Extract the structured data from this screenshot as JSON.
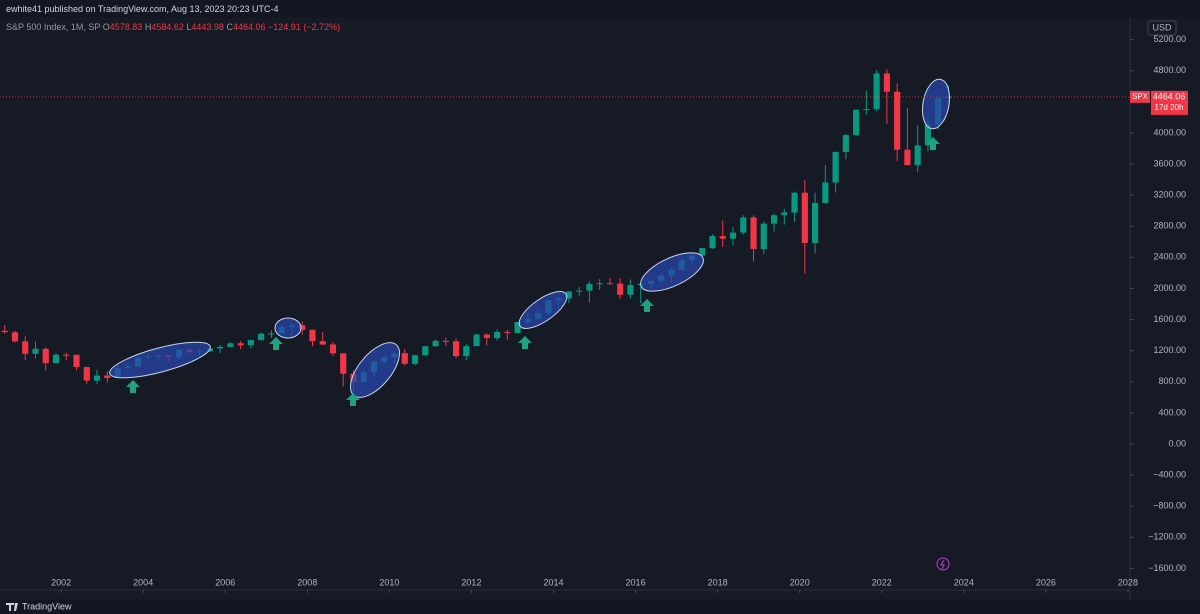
{
  "header": {
    "publisher": "ewhite41 published on TradingView.com, Aug 13, 2023 20:23 UTC-4",
    "footer_brand": "TradingView",
    "currency": "USD",
    "countdown": "17d 20h"
  },
  "chart_data": {
    "type": "candlestick",
    "title": "S&P 500 Index, 1M, SP",
    "symbol": "SPX",
    "readout": {
      "labels": [
        "O",
        "H",
        "L",
        "C"
      ],
      "values": [
        4578.83,
        4584.62,
        4443.98,
        4464.06
      ],
      "change": {
        "value": -124.91,
        "label": "−124.91"
      },
      "change_percent": {
        "value": -2.72,
        "label": "(−2.72%)"
      }
    },
    "up_color": "#089981",
    "down_color": "#f23645",
    "x": [
      2000.5,
      2000.75,
      2001,
      2001.25,
      2001.5,
      2001.75,
      2002,
      2002.25,
      2002.5,
      2002.75,
      2003,
      2003.25,
      2003.5,
      2003.75,
      2004,
      2004.25,
      2004.5,
      2004.75,
      2005,
      2005.25,
      2005.5,
      2005.75,
      2006,
      2006.25,
      2006.5,
      2006.75,
      2007,
      2007.25,
      2007.5,
      2007.75,
      2008,
      2008.25,
      2008.5,
      2008.75,
      2009,
      2009.25,
      2009.5,
      2009.75,
      2010,
      2010.25,
      2010.5,
      2010.75,
      2011,
      2011.25,
      2011.5,
      2011.75,
      2012,
      2012.25,
      2012.5,
      2012.75,
      2013,
      2013.25,
      2013.5,
      2013.75,
      2014,
      2014.25,
      2014.5,
      2014.75,
      2015,
      2015.25,
      2015.5,
      2015.75,
      2016,
      2016.25,
      2016.5,
      2016.75,
      2017,
      2017.25,
      2017.5,
      2017.75,
      2018,
      2018.25,
      2018.5,
      2018.75,
      2019,
      2019.25,
      2019.5,
      2019.75,
      2020,
      2020.25,
      2020.5,
      2020.75,
      2021,
      2021.25,
      2021.5,
      2021.75,
      2022,
      2022.25,
      2022.5,
      2022.75,
      2023,
      2023.25,
      2023.5
    ],
    "open": [
      1455,
      1436,
      1320,
      1160,
      1224,
      1040,
      1148,
      1147,
      990,
      815,
      880,
      848,
      975,
      996,
      1112,
      1126,
      1141,
      1115,
      1212,
      1181,
      1191,
      1229,
      1248,
      1295,
      1270,
      1336,
      1418,
      1421,
      1503,
      1527,
      1468,
      1323,
      1280,
      1166,
      903,
      798,
      919,
      1057,
      1115,
      1169,
      1031,
      1141,
      1258,
      1326,
      1321,
      1131,
      1258,
      1408,
      1362,
      1441,
      1426,
      1569,
      1606,
      1682,
      1848,
      1872,
      1960,
      1972,
      2059,
      2068,
      2063,
      1920,
      2044,
      2060,
      2099,
      2168,
      2239,
      2363,
      2423,
      2519,
      2674,
      2641,
      2718,
      2914,
      2507,
      2834,
      2942,
      2977,
      3231,
      2585,
      3100,
      3363,
      3756,
      3973,
      4298,
      4308,
      4766,
      4530,
      3785,
      3586,
      3840,
      4109,
      4450
    ],
    "high": [
      1530,
      1455,
      1385,
      1315,
      1240,
      1170,
      1175,
      1150,
      990,
      955,
      935,
      1015,
      1040,
      1112,
      1163,
      1150,
      1140,
      1217,
      1229,
      1217,
      1245,
      1275,
      1311,
      1326,
      1340,
      1431,
      1461,
      1540,
      1556,
      1576,
      1471,
      1440,
      1313,
      1167,
      944,
      956,
      1080,
      1130,
      1180,
      1220,
      1150,
      1263,
      1344,
      1370,
      1357,
      1292,
      1420,
      1422,
      1475,
      1470,
      1570,
      1688,
      1729,
      1850,
      1883,
      1968,
      2019,
      2093,
      2119,
      2135,
      2133,
      2116,
      2081,
      2121,
      2194,
      2278,
      2401,
      2454,
      2519,
      2695,
      2873,
      2791,
      2941,
      2940,
      2860,
      2964,
      3028,
      3248,
      3394,
      3233,
      3588,
      3760,
      3983,
      4302,
      4546,
      4808,
      4818,
      4637,
      4325,
      4100,
      4195,
      4458,
      4607
    ],
    "low": [
      1420,
      1305,
      1080,
      1100,
      945,
      1035,
      1075,
      950,
      775,
      770,
      790,
      845,
      960,
      990,
      1090,
      1076,
      1060,
      1090,
      1163,
      1137,
      1183,
      1168,
      1245,
      1220,
      1224,
      1330,
      1364,
      1416,
      1371,
      1406,
      1257,
      1272,
      1133,
      741,
      667,
      784,
      869,
      1020,
      1044,
      1011,
      1010,
      1131,
      1249,
      1259,
      1101,
      1075,
      1258,
      1267,
      1325,
      1343,
      1426,
      1537,
      1604,
      1646,
      1737,
      1814,
      1904,
      1820,
      1981,
      2048,
      1867,
      1872,
      1810,
      1992,
      2074,
      2084,
      2233,
      2322,
      2406,
      2510,
      2533,
      2553,
      2691,
      2347,
      2444,
      2729,
      2822,
      2856,
      2192,
      2447,
      3088,
      3234,
      3662,
      3955,
      4233,
      4279,
      4115,
      3637,
      3584,
      3492,
      3764,
      4048,
      4335
    ],
    "close": [
      1436,
      1320,
      1160,
      1224,
      1040,
      1148,
      1147,
      990,
      815,
      880,
      848,
      975,
      996,
      1112,
      1126,
      1141,
      1115,
      1212,
      1181,
      1191,
      1229,
      1248,
      1295,
      1270,
      1336,
      1418,
      1421,
      1503,
      1527,
      1468,
      1323,
      1280,
      1166,
      903,
      798,
      919,
      1057,
      1115,
      1169,
      1031,
      1141,
      1258,
      1326,
      1321,
      1131,
      1258,
      1408,
      1362,
      1441,
      1426,
      1569,
      1606,
      1682,
      1848,
      1872,
      1960,
      1972,
      2059,
      2068,
      2063,
      1920,
      2044,
      2060,
      2099,
      2168,
      2239,
      2363,
      2423,
      2519,
      2674,
      2641,
      2718,
      2914,
      2507,
      2834,
      2942,
      2977,
      3231,
      2585,
      3100,
      3363,
      3756,
      3973,
      4298,
      4308,
      4766,
      4530,
      3785,
      3586,
      3840,
      4109,
      4450,
      4464.06
    ],
    "xlim": [
      2000.51,
      2028.05
    ],
    "xticks": [
      2002,
      2004,
      2006,
      2008,
      2010,
      2012,
      2014,
      2016,
      2018,
      2020,
      2022,
      2024,
      2026,
      2028
    ],
    "ylim": [
      -1878,
      5710
    ],
    "yticks": [
      {
        "value": 5200,
        "label": "5200.00"
      },
      {
        "value": 4800,
        "label": "4800.00"
      },
      {
        "value": 4400,
        "label": "4400.00"
      },
      {
        "value": 4000,
        "label": "4000.00"
      },
      {
        "value": 3600,
        "label": "3600.00"
      },
      {
        "value": 3200,
        "label": "3200.00"
      },
      {
        "value": 2800,
        "label": "2800.00"
      },
      {
        "value": 2400,
        "label": "2400.00"
      },
      {
        "value": 2000,
        "label": "2000.00"
      },
      {
        "value": 1600,
        "label": "1600.00"
      },
      {
        "value": 1200,
        "label": "1200.00"
      },
      {
        "value": 800,
        "label": "800.00"
      },
      {
        "value": 400,
        "label": "400.00"
      },
      {
        "value": 0,
        "label": "0.00"
      },
      {
        "value": -400,
        "label": "−400.00"
      },
      {
        "value": -800,
        "label": "−800.00"
      },
      {
        "value": -1200,
        "label": "−1200.00"
      },
      {
        "value": -1600,
        "label": "−1600.00"
      }
    ]
  }
}
